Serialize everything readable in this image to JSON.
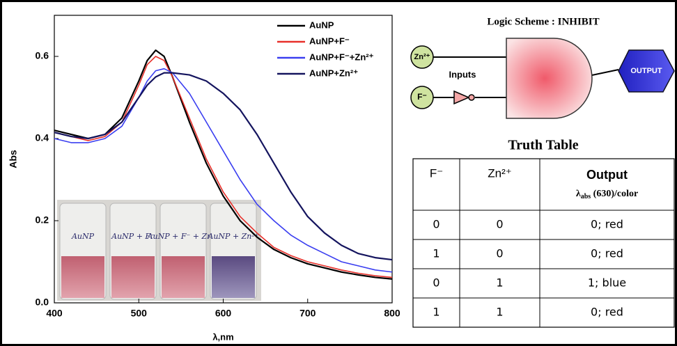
{
  "chart_data": {
    "type": "line",
    "x_label": "λ,nm",
    "y_label": "Abs",
    "x": [
      400,
      420,
      440,
      460,
      480,
      500,
      510,
      520,
      530,
      540,
      560,
      580,
      600,
      620,
      640,
      660,
      680,
      700,
      720,
      740,
      760,
      780,
      800
    ],
    "series": [
      {
        "name": "AuNP",
        "color": "#000000",
        "values": [
          0.42,
          0.41,
          0.4,
          0.41,
          0.45,
          0.54,
          0.59,
          0.615,
          0.6,
          0.55,
          0.44,
          0.34,
          0.26,
          0.2,
          0.16,
          0.13,
          0.11,
          0.095,
          0.085,
          0.075,
          0.068,
          0.062,
          0.058
        ]
      },
      {
        "name": "AuNP+F⁻",
        "color": "#e8302a",
        "values": [
          0.415,
          0.405,
          0.395,
          0.405,
          0.44,
          0.53,
          0.58,
          0.6,
          0.59,
          0.55,
          0.45,
          0.35,
          0.27,
          0.21,
          0.17,
          0.135,
          0.115,
          0.1,
          0.09,
          0.08,
          0.072,
          0.066,
          0.062
        ]
      },
      {
        "name": "AuNP+F⁻+Zn²⁺",
        "color": "#3a3ef0",
        "values": [
          0.4,
          0.39,
          0.39,
          0.4,
          0.43,
          0.5,
          0.54,
          0.565,
          0.57,
          0.56,
          0.51,
          0.44,
          0.37,
          0.3,
          0.24,
          0.2,
          0.165,
          0.14,
          0.12,
          0.1,
          0.09,
          0.08,
          0.075
        ]
      },
      {
        "name": "AuNP+Zn²⁺",
        "color": "#14145e",
        "values": [
          0.415,
          0.405,
          0.4,
          0.41,
          0.44,
          0.5,
          0.53,
          0.55,
          0.56,
          0.56,
          0.555,
          0.54,
          0.51,
          0.47,
          0.41,
          0.34,
          0.27,
          0.21,
          0.17,
          0.14,
          0.12,
          0.11,
          0.105
        ]
      }
    ],
    "xlim": [
      400,
      800
    ],
    "xticks": [
      400,
      500,
      600,
      700,
      800
    ],
    "ylim": [
      0,
      0.7
    ],
    "yticks": [
      {
        "value": 0,
        "label": "0.0"
      },
      0.2,
      0.4,
      0.6
    ],
    "legend": "upper right",
    "photo_labels": [
      "AuNP",
      "AuNP + F⁻",
      "AuNP + F⁻ + Zn²⁺",
      "AuNP + Zn²⁺"
    ]
  },
  "logic_scheme": {
    "title": "Logic Scheme : INHIBIT",
    "inputs_label": "Inputs",
    "input_1": "Zn²⁺",
    "input_2": "F⁻",
    "output": "OUTPUT"
  },
  "truth_table": {
    "title": "Truth Table",
    "headers": [
      "F⁻",
      "Zn²⁺",
      "Output"
    ],
    "output_detail": {
      "symbol": "λ",
      "sub": "abs",
      "rest": " (630)/color"
    },
    "rows": [
      [
        0,
        0,
        "0; red"
      ],
      [
        1,
        0,
        "0; red"
      ],
      [
        0,
        1,
        "1; blue"
      ],
      [
        1,
        1,
        "0; red"
      ]
    ]
  }
}
